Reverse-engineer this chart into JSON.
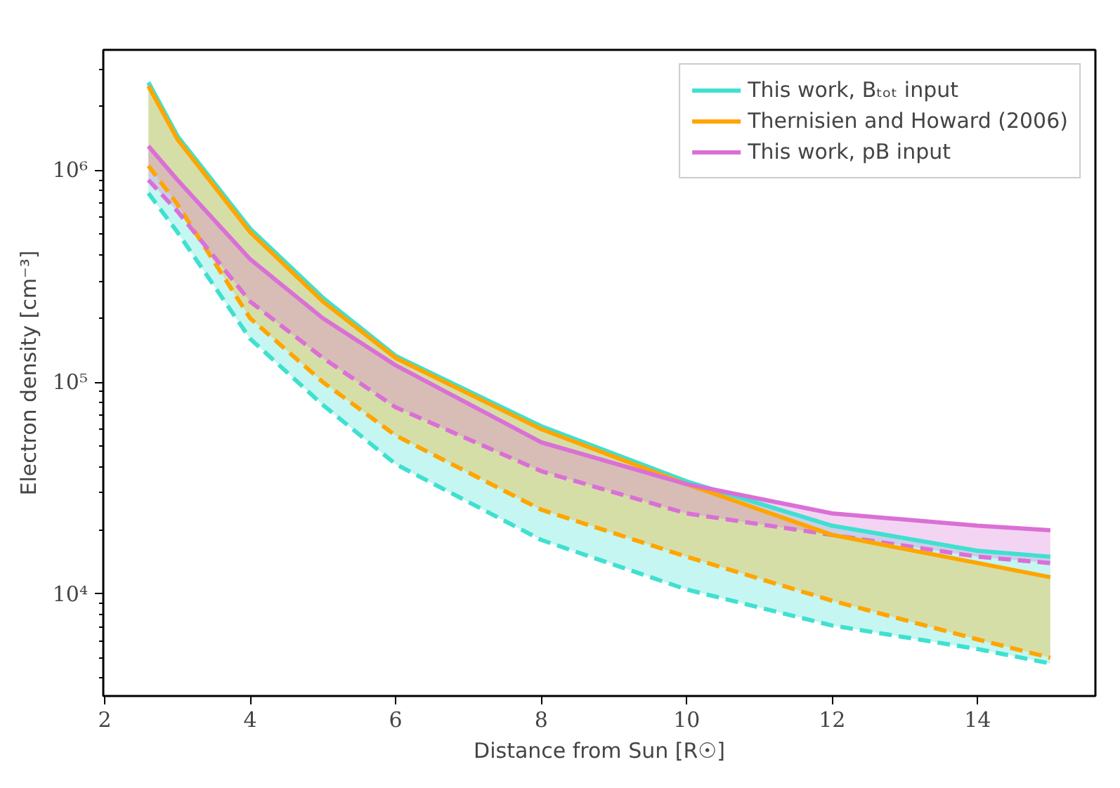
{
  "chart_data": {
    "type": "line",
    "xlabel": "Distance from Sun [R☉]",
    "ylabel": "Electron density [cm⁻³]",
    "x": [
      2.6,
      3,
      4,
      5,
      6,
      8,
      10,
      12,
      14,
      15
    ],
    "series": [
      {
        "name": "This work, Bₜₒₜ input",
        "color": "#40e0d0",
        "values": [
          2600000,
          1450000,
          530000,
          250000,
          133000,
          62000,
          34000,
          21000,
          16000,
          15000
        ],
        "lower": [
          780000,
          510000,
          160000,
          78000,
          41000,
          18000,
          10500,
          7100,
          5500,
          4700
        ],
        "upper": [
          2600000,
          1450000,
          530000,
          250000,
          133000,
          62000,
          34000,
          21000,
          16000,
          15000
        ]
      },
      {
        "name": "Thernisien and Howard (2006)",
        "color": "#ffa500",
        "values": [
          2500000,
          1400000,
          510000,
          240000,
          130000,
          60000,
          33000,
          19000,
          14000,
          12000
        ],
        "lower": [
          1050000,
          690000,
          200000,
          100000,
          56000,
          25000,
          15000,
          9300,
          6100,
          5000
        ],
        "upper": [
          2500000,
          1400000,
          510000,
          240000,
          130000,
          60000,
          33000,
          19000,
          14000,
          12000
        ]
      },
      {
        "name": "This work, pB input",
        "color": "#da70d6",
        "values": [
          1300000,
          900000,
          380000,
          200000,
          120000,
          52000,
          33000,
          24000,
          21000,
          20000
        ],
        "lower": [
          900000,
          640000,
          240000,
          130000,
          76000,
          38000,
          24000,
          19000,
          15000,
          14000
        ],
        "upper": [
          1300000,
          900000,
          380000,
          200000,
          120000,
          52000,
          33000,
          24000,
          21000,
          20000
        ]
      },
      {
        "color": "#40e0d0",
        "line_style": "dashed",
        "values": [
          780000,
          510000,
          160000,
          78000,
          41000,
          18000,
          10500,
          7100,
          5500,
          4700
        ]
      },
      {
        "color": "#ffa500",
        "line_style": "dashed",
        "values": [
          1050000,
          690000,
          200000,
          100000,
          56000,
          25000,
          15000,
          9300,
          6100,
          5000
        ]
      },
      {
        "color": "#da70d6",
        "line_style": "dashed",
        "values": [
          900000,
          640000,
          240000,
          130000,
          76000,
          38000,
          24000,
          19000,
          15000,
          14000
        ]
      }
    ],
    "log": "y",
    "xlim": [
      1.98,
      15.62
    ],
    "ylim": [
      3300,
      3700000
    ],
    "xticks": [
      2,
      4,
      6,
      8,
      10,
      12,
      14
    ],
    "yticks": [
      {
        "value": 10000,
        "label": "10⁴"
      },
      {
        "value": 100000,
        "label": "10⁵"
      },
      {
        "value": 1000000,
        "label": "10⁶"
      }
    ],
    "grid": false,
    "legend": "top right",
    "line_style": "solid",
    "marker": "none"
  }
}
